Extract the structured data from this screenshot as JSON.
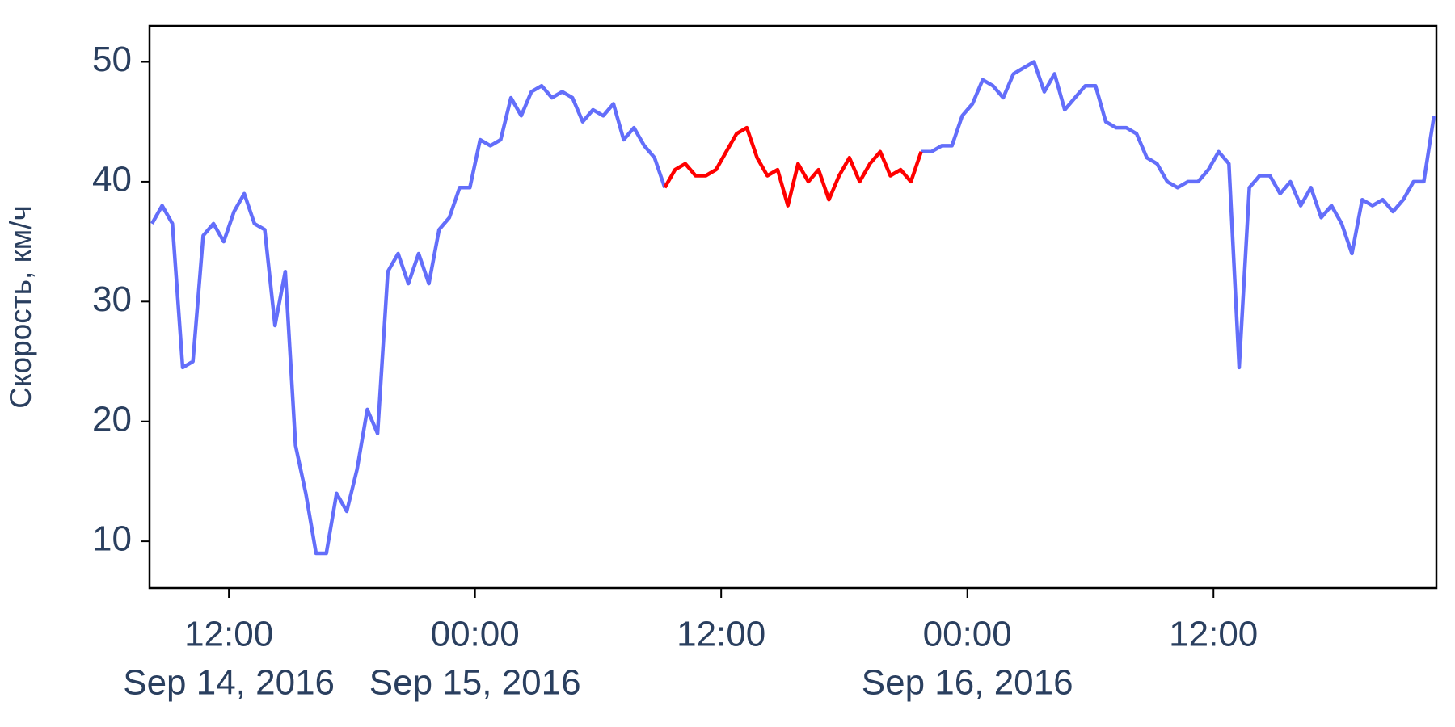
{
  "chart_data": {
    "type": "line",
    "y_label": "Скорость, км/ч",
    "x": [
      "2016-09-14 08:15",
      "2016-09-14 08:45",
      "2016-09-14 09:15",
      "2016-09-14 09:45",
      "2016-09-14 10:15",
      "2016-09-14 10:45",
      "2016-09-14 11:15",
      "2016-09-14 11:45",
      "2016-09-14 12:15",
      "2016-09-14 12:45",
      "2016-09-14 13:15",
      "2016-09-14 13:45",
      "2016-09-14 14:15",
      "2016-09-14 14:45",
      "2016-09-14 15:15",
      "2016-09-14 15:45",
      "2016-09-14 16:15",
      "2016-09-14 16:45",
      "2016-09-14 17:15",
      "2016-09-14 17:45",
      "2016-09-14 18:15",
      "2016-09-14 18:45",
      "2016-09-14 19:15",
      "2016-09-14 19:45",
      "2016-09-14 20:15",
      "2016-09-14 20:45",
      "2016-09-14 21:15",
      "2016-09-14 21:45",
      "2016-09-14 22:15",
      "2016-09-14 22:45",
      "2016-09-14 23:15",
      "2016-09-14 23:45",
      "2016-09-15 00:15",
      "2016-09-15 00:45",
      "2016-09-15 01:15",
      "2016-09-15 01:45",
      "2016-09-15 02:15",
      "2016-09-15 02:45",
      "2016-09-15 03:15",
      "2016-09-15 03:45",
      "2016-09-15 04:15",
      "2016-09-15 04:45",
      "2016-09-15 05:15",
      "2016-09-15 05:45",
      "2016-09-15 06:15",
      "2016-09-15 06:45",
      "2016-09-15 07:15",
      "2016-09-15 07:45",
      "2016-09-15 08:15",
      "2016-09-15 08:45",
      "2016-09-15 09:15",
      "2016-09-15 09:45",
      "2016-09-15 10:15",
      "2016-09-15 10:45",
      "2016-09-15 11:15",
      "2016-09-15 11:45",
      "2016-09-15 12:15",
      "2016-09-15 12:45",
      "2016-09-15 13:15",
      "2016-09-15 13:45",
      "2016-09-15 14:15",
      "2016-09-15 14:45",
      "2016-09-15 15:15",
      "2016-09-15 15:45",
      "2016-09-15 16:15",
      "2016-09-15 16:45",
      "2016-09-15 17:15",
      "2016-09-15 17:45",
      "2016-09-15 18:15",
      "2016-09-15 18:45",
      "2016-09-15 19:15",
      "2016-09-15 19:45",
      "2016-09-15 20:15",
      "2016-09-15 20:45",
      "2016-09-15 21:15",
      "2016-09-15 21:45",
      "2016-09-15 22:15",
      "2016-09-15 22:45",
      "2016-09-15 23:15",
      "2016-09-15 23:45",
      "2016-09-16 00:15",
      "2016-09-16 00:45",
      "2016-09-16 01:15",
      "2016-09-16 01:45",
      "2016-09-16 02:15",
      "2016-09-16 02:45",
      "2016-09-16 03:15",
      "2016-09-16 03:45",
      "2016-09-16 04:15",
      "2016-09-16 04:45",
      "2016-09-16 05:15",
      "2016-09-16 05:45",
      "2016-09-16 06:15",
      "2016-09-16 06:45",
      "2016-09-16 07:15",
      "2016-09-16 07:45",
      "2016-09-16 08:15",
      "2016-09-16 08:45",
      "2016-09-16 09:15",
      "2016-09-16 09:45",
      "2016-09-16 10:15",
      "2016-09-16 10:45",
      "2016-09-16 11:15",
      "2016-09-16 11:45",
      "2016-09-16 12:15",
      "2016-09-16 12:45",
      "2016-09-16 13:15",
      "2016-09-16 13:45",
      "2016-09-16 14:15",
      "2016-09-16 14:45",
      "2016-09-16 15:15",
      "2016-09-16 15:45",
      "2016-09-16 16:15",
      "2016-09-16 16:45",
      "2016-09-16 17:15",
      "2016-09-16 17:45",
      "2016-09-16 18:15",
      "2016-09-16 18:45",
      "2016-09-16 19:15",
      "2016-09-16 19:45",
      "2016-09-16 20:15",
      "2016-09-16 20:45",
      "2016-09-16 21:15",
      "2016-09-16 21:45",
      "2016-09-16 22:15",
      "2016-09-16 22:45"
    ],
    "series": [
      {
        "color": "#636efa",
        "values": [
          36.5,
          38,
          36.5,
          24.5,
          25,
          35.5,
          36.5,
          35,
          37.5,
          39,
          36.5,
          36,
          28,
          32.5,
          18,
          14,
          9,
          9,
          14,
          12.5,
          16,
          21,
          19,
          32.5,
          34,
          31.5,
          34,
          31.5,
          36,
          37,
          39.5,
          39.5,
          43.5,
          43,
          43.5,
          47,
          45.5,
          47.5,
          48,
          47,
          47.5,
          47,
          45,
          46,
          45.5,
          46.5,
          43.5,
          44.5,
          43,
          42,
          39.5,
          null,
          null,
          null,
          null,
          null,
          null,
          null,
          null,
          null,
          null,
          null,
          null,
          null,
          null,
          null,
          null,
          null,
          null,
          null,
          null,
          null,
          null,
          null,
          null,
          42.5,
          42.5,
          43,
          43,
          45.5,
          46.5,
          48.5,
          48,
          47,
          49,
          49.5,
          50,
          47.5,
          49,
          46,
          47,
          48,
          48,
          45,
          44.5,
          44.5,
          44,
          42,
          41.5,
          40,
          39.5,
          40,
          40,
          41,
          42.5,
          41.5,
          24.5,
          39.5,
          40.5,
          40.5,
          39,
          40,
          38,
          39.5,
          37,
          38,
          36.5,
          34,
          38.5,
          38,
          38.5,
          37.5,
          38.5,
          40,
          40,
          45.5
        ]
      },
      {
        "color": "#ff0000",
        "values": [
          null,
          null,
          null,
          null,
          null,
          null,
          null,
          null,
          null,
          null,
          null,
          null,
          null,
          null,
          null,
          null,
          null,
          null,
          null,
          null,
          null,
          null,
          null,
          null,
          null,
          null,
          null,
          null,
          null,
          null,
          null,
          null,
          null,
          null,
          null,
          null,
          null,
          null,
          null,
          null,
          null,
          null,
          null,
          null,
          null,
          null,
          null,
          null,
          null,
          null,
          39.5,
          41,
          41.5,
          40.5,
          40.5,
          41,
          42.5,
          44,
          44.5,
          42,
          40.5,
          41,
          38,
          41.5,
          40,
          41,
          38.5,
          40.5,
          42,
          40,
          41.5,
          42.5,
          40.5,
          41,
          40,
          42.5,
          null,
          null,
          null,
          null,
          null,
          null,
          null,
          null,
          null,
          null,
          null,
          null,
          null,
          null,
          null,
          null,
          null,
          null,
          null,
          null,
          null,
          null,
          null,
          null,
          null,
          null,
          null,
          null,
          null,
          null,
          null,
          null,
          null,
          null,
          null,
          null,
          null,
          null,
          null,
          null,
          null,
          null,
          null,
          null,
          null,
          null,
          null,
          null,
          null,
          null
        ]
      }
    ],
    "xlim": [
      "2016-09-14 08:08",
      "2016-09-16 22:52"
    ],
    "xticks": [
      {
        "value": "2016-09-14 12:00",
        "label": "12:00"
      },
      {
        "value": "2016-09-15 00:00",
        "label": "00:00"
      },
      {
        "value": "2016-09-15 12:00",
        "label": "12:00"
      },
      {
        "value": "2016-09-16 00:00",
        "label": "00:00"
      },
      {
        "value": "2016-09-16 12:00",
        "label": "12:00"
      }
    ],
    "xtick_dates": [
      {
        "value": "2016-09-14 12:00",
        "label": "Sep 14, 2016"
      },
      {
        "value": "2016-09-15 00:00",
        "label": "Sep 15, 2016"
      },
      {
        "value": "2016-09-16 00:00",
        "label": "Sep 16, 2016"
      }
    ],
    "ylim": [
      6.1,
      53
    ],
    "yticks": [
      10,
      20,
      30,
      40,
      50
    ],
    "grid": false
  }
}
